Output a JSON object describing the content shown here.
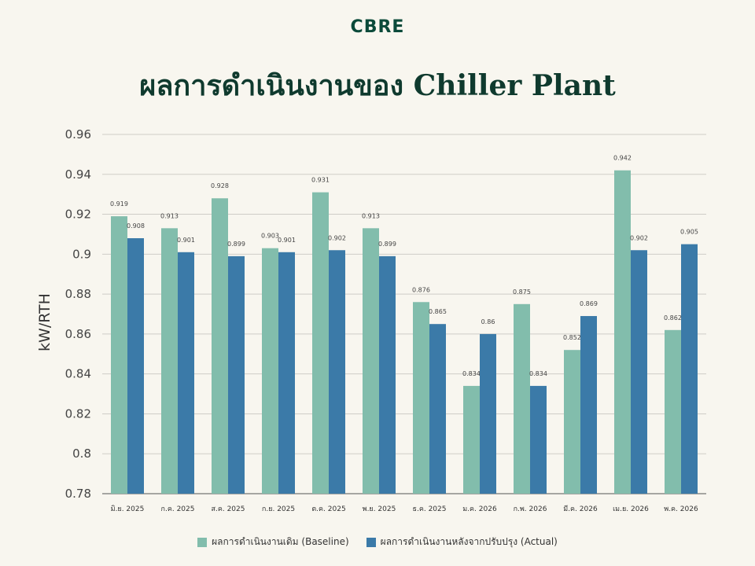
{
  "logo": "CBRE",
  "colors": {
    "baseline": "#82bdac",
    "actual": "#3b7aa8",
    "grid": "#cfcdc7",
    "axis": "#555555"
  },
  "chart_data": {
    "type": "bar",
    "title": "ผลการดำเนินงานของ Chiller Plant",
    "ylabel": "kW/RTH",
    "xlabel": "",
    "ylim": [
      0.78,
      0.96
    ],
    "yticks": [
      "0.78",
      "0.8",
      "0.82",
      "0.84",
      "0.86",
      "0.88",
      "0.9",
      "0.92",
      "0.94",
      "0.96"
    ],
    "grid": true,
    "legend_position": "bottom",
    "categories": [
      "มิ.ย. 2025",
      "ก.ค. 2025",
      "ส.ค. 2025",
      "ก.ย. 2025",
      "ต.ค. 2025",
      "พ.ย. 2025",
      "ธ.ค. 2025",
      "ม.ค. 2026",
      "ก.พ. 2026",
      "มี.ค. 2026",
      "เม.ย. 2026",
      "พ.ค. 2026"
    ],
    "series": [
      {
        "name": "ผลการดำเนินงานเดิม (Baseline)",
        "values": [
          0.919,
          0.913,
          0.928,
          0.903,
          0.931,
          0.913,
          0.876,
          0.834,
          0.875,
          0.852,
          0.942,
          0.862
        ]
      },
      {
        "name": "ผลการดำเนินงานหลังจากปรับปรุง (Actual)",
        "values": [
          0.908,
          0.901,
          0.899,
          0.901,
          0.902,
          0.899,
          0.865,
          0.86,
          0.834,
          0.869,
          0.902,
          0.905
        ]
      }
    ]
  }
}
